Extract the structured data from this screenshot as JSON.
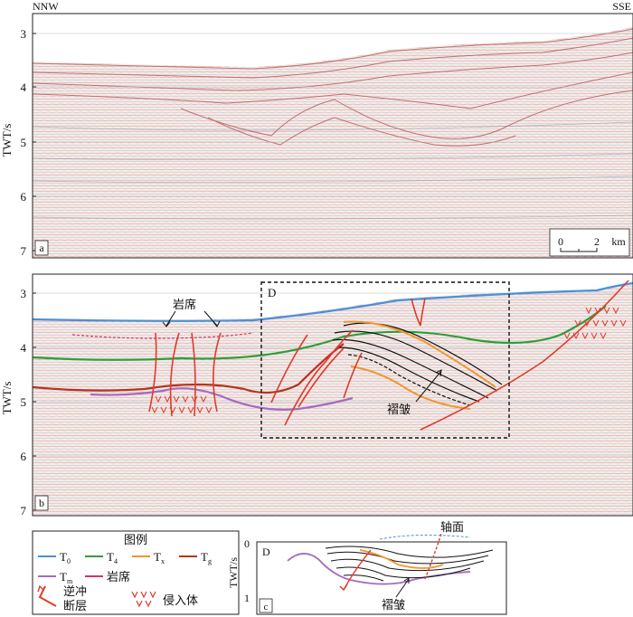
{
  "panel_a": {
    "label": "a",
    "dir_left": "NNW",
    "dir_right": "SSE",
    "axis_title": "TWT/s",
    "ticks": [
      "3",
      "4",
      "5",
      "6",
      "7"
    ],
    "scale": {
      "start": "0",
      "end": "2",
      "unit": "km"
    }
  },
  "panel_b": {
    "label": "b",
    "axis_title": "TWT/s",
    "ticks": [
      "3",
      "4",
      "5",
      "6",
      "7"
    ],
    "box_label": "D",
    "sill_label": "岩席",
    "fold_label": "褶皱"
  },
  "legend": {
    "title": "图例",
    "items": [
      {
        "sym": "T",
        "sub": "0",
        "color": "#4a90d9"
      },
      {
        "sym": "T",
        "sub": "4",
        "color": "#2e9e3a"
      },
      {
        "sym": "T",
        "sub": "x",
        "color": "#f2952f"
      },
      {
        "sym": "T",
        "sub": "g",
        "color": "#b8321f"
      },
      {
        "sym": "T",
        "sub": "m",
        "color": "#a36bbf"
      }
    ],
    "sill": "岩席",
    "sill_color": "#d6336c",
    "fault_line1": "逆冲",
    "fault_line2": "断层",
    "fault_color": "#e03b2a",
    "intrusion": "侵入体"
  },
  "panel_c": {
    "label": "c",
    "box_label": "D",
    "axis_title": "TWT/s",
    "ticks": [
      "0",
      "1"
    ],
    "axial_plane": "轴面",
    "fold_label": "褶皱"
  }
}
